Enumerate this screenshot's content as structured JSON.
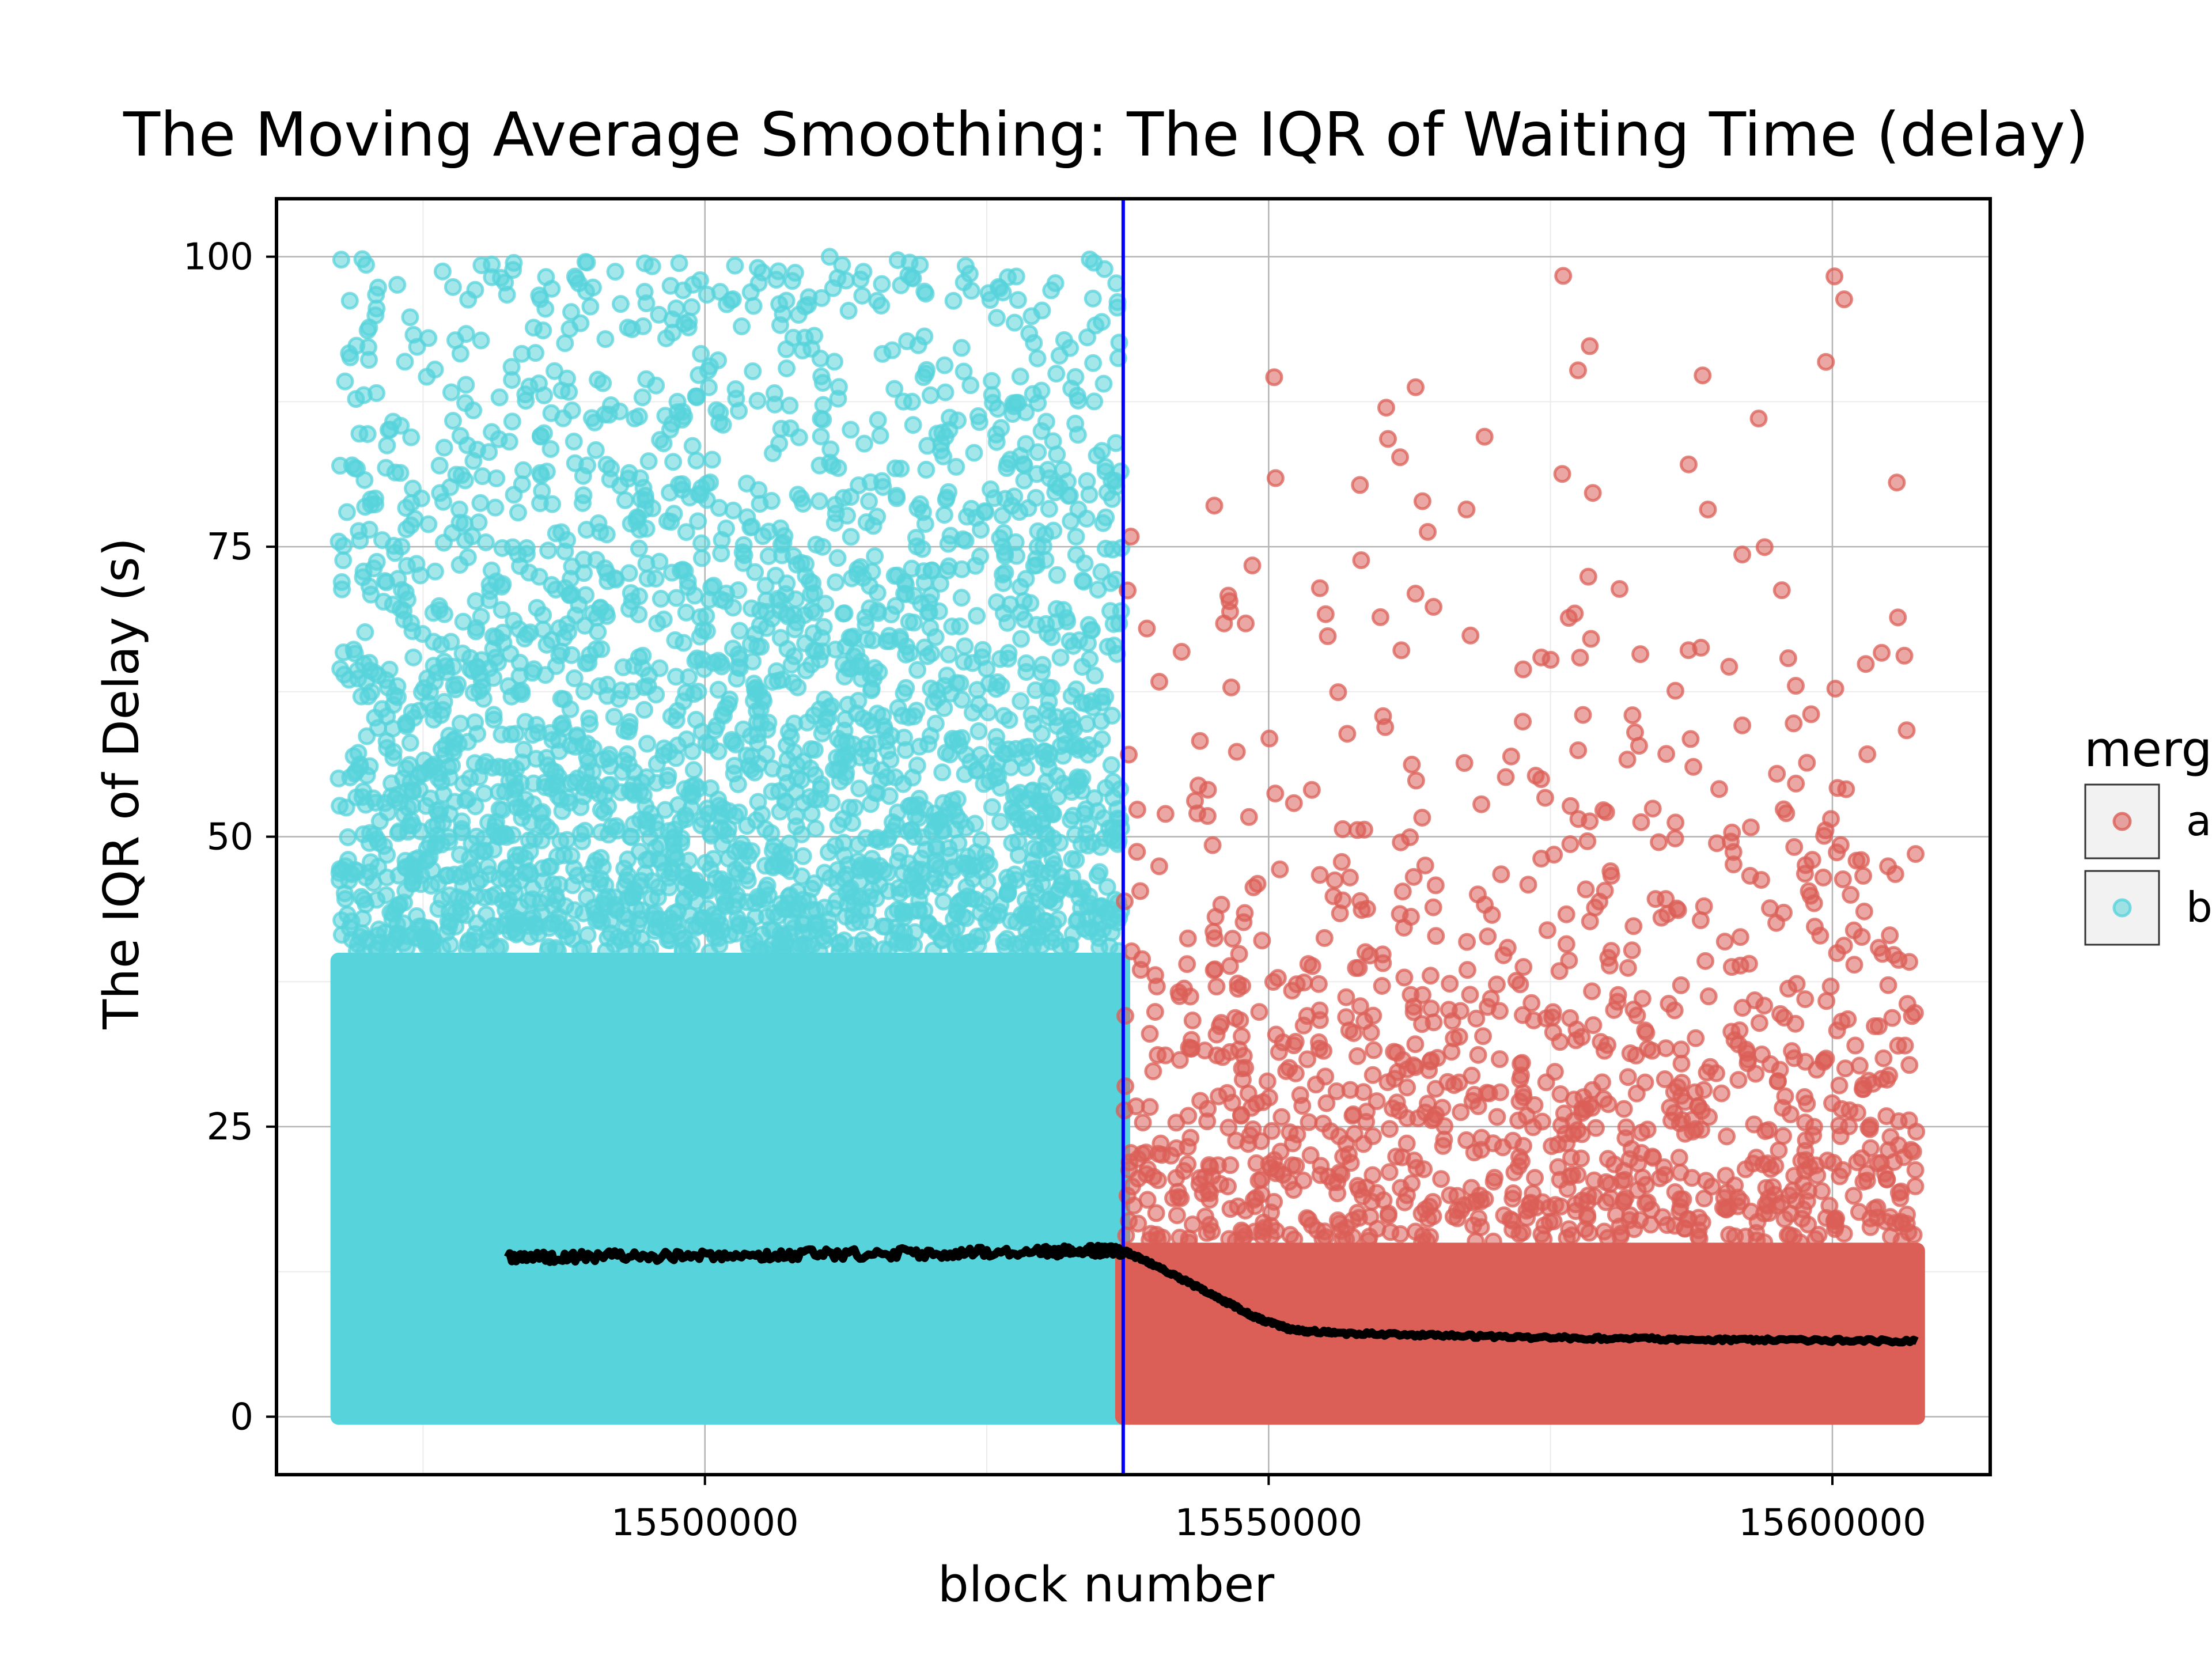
{
  "chart_data": {
    "type": "scatter",
    "title": "The Moving Average Smoothing: The IQR of Waiting Time (delay)",
    "xlabel": "block number",
    "ylabel": "The IQR of Delay (s)",
    "xlim": [
      15462000,
      15614000
    ],
    "ylim": [
      -5,
      105
    ],
    "x_ticks": [
      15500000,
      15550000,
      15600000
    ],
    "x_tick_labels": [
      "15500000",
      "15550000",
      "15600000"
    ],
    "y_ticks": [
      0,
      25,
      50,
      75,
      100
    ],
    "y_tick_labels": [
      "0",
      "25",
      "50",
      "75",
      "100"
    ],
    "grid": true,
    "legend": {
      "title": "merg",
      "position": "right",
      "items": [
        {
          "label": "a",
          "color": "#db5f57"
        },
        {
          "label": "b",
          "color": "#57d3db"
        }
      ]
    },
    "vline": {
      "x": 15537100,
      "color": "#0000ff"
    },
    "series": [
      {
        "name": "b",
        "color": "#57d3db",
        "x_range": [
          15467500,
          15537000
        ],
        "dense_y_max": 40,
        "sparse_y_max": 100
      },
      {
        "name": "a",
        "color": "#db5f57",
        "x_range": [
          15537100,
          15607500
        ],
        "dense_y_max": 15,
        "sparse_y_max": 100
      }
    ],
    "moving_average": {
      "color": "#000000",
      "x": [
        15482500,
        15490000,
        15500000,
        15510000,
        15520000,
        15530000,
        15535000,
        15537100,
        15540000,
        15545000,
        15549000,
        15552000,
        15556000,
        15565000,
        15575000,
        15585000,
        15595000,
        15607500
      ],
      "y": [
        13.7,
        13.8,
        13.9,
        14.0,
        14.1,
        14.2,
        14.3,
        14.3,
        13.0,
        10.5,
        8.5,
        7.5,
        7.2,
        7.0,
        6.8,
        6.7,
        6.6,
        6.5
      ]
    }
  }
}
